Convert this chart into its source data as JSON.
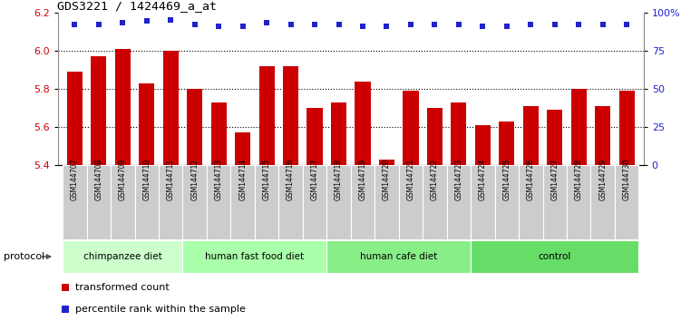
{
  "title": "GDS3221 / 1424469_a_at",
  "samples": [
    "GSM144707",
    "GSM144708",
    "GSM144709",
    "GSM144710",
    "GSM144711",
    "GSM144712",
    "GSM144713",
    "GSM144714",
    "GSM144715",
    "GSM144716",
    "GSM144717",
    "GSM144718",
    "GSM144719",
    "GSM144720",
    "GSM144721",
    "GSM144722",
    "GSM144723",
    "GSM144724",
    "GSM144725",
    "GSM144726",
    "GSM144727",
    "GSM144728",
    "GSM144729",
    "GSM144730"
  ],
  "bar_values": [
    5.89,
    5.97,
    6.01,
    5.83,
    6.0,
    5.8,
    5.73,
    5.57,
    5.92,
    5.92,
    5.7,
    5.73,
    5.84,
    5.43,
    5.79,
    5.7,
    5.73,
    5.61,
    5.63,
    5.71,
    5.69,
    5.8,
    5.71,
    5.79
  ],
  "percentile_values": [
    6.14,
    6.14,
    6.15,
    6.155,
    6.16,
    6.14,
    6.13,
    6.13,
    6.15,
    6.14,
    6.14,
    6.14,
    6.13,
    6.13,
    6.14,
    6.14,
    6.14,
    6.13,
    6.13,
    6.14,
    6.14,
    6.14,
    6.14,
    6.14
  ],
  "ylim": [
    5.4,
    6.2
  ],
  "yticks": [
    5.4,
    5.6,
    5.8,
    6.0,
    6.2
  ],
  "y2ticks": [
    0,
    25,
    50,
    75,
    100
  ],
  "bar_color": "#cc0000",
  "dot_color": "#2222cc",
  "groups": [
    {
      "label": "chimpanzee diet",
      "start": 0,
      "end": 5,
      "color": "#ccffcc"
    },
    {
      "label": "human fast food diet",
      "start": 5,
      "end": 11,
      "color": "#aaffaa"
    },
    {
      "label": "human cafe diet",
      "start": 11,
      "end": 17,
      "color": "#88ee88"
    },
    {
      "label": "control",
      "start": 17,
      "end": 24,
      "color": "#66dd66"
    }
  ],
  "legend_items": [
    {
      "label": "transformed count",
      "color": "#cc0000"
    },
    {
      "label": "percentile rank within the sample",
      "color": "#2222cc"
    }
  ],
  "protocol_label": "protocol",
  "bar_width": 0.65,
  "label_bg": "#cccccc",
  "label_border": "#888888"
}
